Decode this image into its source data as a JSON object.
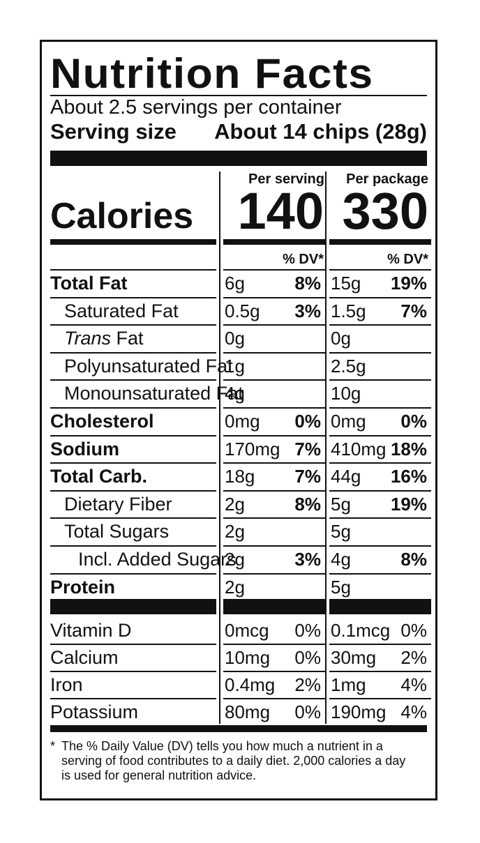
{
  "title": "Nutrition Facts",
  "servings_per_container": "About 2.5 servings per container",
  "serving_size_label": "Serving size",
  "serving_size_value": "About 14 chips (28g)",
  "col_per_serving": "Per serving",
  "col_per_package": "Per package",
  "calories_label": "Calories",
  "calories_serving": "140",
  "calories_package": "330",
  "dv_header": "% DV*",
  "nutrients": [
    {
      "label": "Total Fat",
      "bold": true,
      "indent": 0,
      "s_amt": "6g",
      "s_dv": "8%",
      "p_amt": "15g",
      "p_dv": "19%"
    },
    {
      "label": "Saturated Fat",
      "bold": false,
      "indent": 1,
      "s_amt": "0.5g",
      "s_dv": "3%",
      "p_amt": "1.5g",
      "p_dv": "7%"
    },
    {
      "label_italic": "Trans",
      "label": " Fat",
      "bold": false,
      "indent": 1,
      "s_amt": "0g",
      "s_dv": "",
      "p_amt": "0g",
      "p_dv": ""
    },
    {
      "label": "Polyunsaturated Fat",
      "bold": false,
      "indent": 1,
      "s_amt": "1g",
      "s_dv": "",
      "p_amt": "2.5g",
      "p_dv": ""
    },
    {
      "label": "Monounsaturated Fat",
      "bold": false,
      "indent": 1,
      "s_amt": "4g",
      "s_dv": "",
      "p_amt": "10g",
      "p_dv": ""
    },
    {
      "label": "Cholesterol",
      "bold": true,
      "indent": 0,
      "s_amt": "0mg",
      "s_dv": "0%",
      "p_amt": "0mg",
      "p_dv": "0%"
    },
    {
      "label": "Sodium",
      "bold": true,
      "indent": 0,
      "s_amt": "170mg",
      "s_dv": "7%",
      "p_amt": "410mg",
      "p_dv": "18%"
    },
    {
      "label": "Total Carb.",
      "bold": true,
      "indent": 0,
      "s_amt": "18g",
      "s_dv": "7%",
      "p_amt": "44g",
      "p_dv": "16%"
    },
    {
      "label": "Dietary Fiber",
      "bold": false,
      "indent": 1,
      "s_amt": "2g",
      "s_dv": "8%",
      "p_amt": "5g",
      "p_dv": "19%"
    },
    {
      "label": "Total Sugars",
      "bold": false,
      "indent": 1,
      "s_amt": "2g",
      "s_dv": "",
      "p_amt": "5g",
      "p_dv": ""
    },
    {
      "label": "Incl. Added Sugars",
      "bold": false,
      "indent": 2,
      "s_amt": "2g",
      "s_dv": "3%",
      "p_amt": "4g",
      "p_dv": "8%"
    },
    {
      "label": "Protein",
      "bold": true,
      "indent": 0,
      "s_amt": "2g",
      "s_dv": "",
      "p_amt": "5g",
      "p_dv": ""
    }
  ],
  "vitamins": [
    {
      "label": "Vitamin D",
      "s_amt": "0mcg",
      "s_dv": "0%",
      "p_amt": "0.1mcg",
      "p_dv": "0%"
    },
    {
      "label": "Calcium",
      "s_amt": "10mg",
      "s_dv": "0%",
      "p_amt": "30mg",
      "p_dv": "2%"
    },
    {
      "label": "Iron",
      "s_amt": "0.4mg",
      "s_dv": "2%",
      "p_amt": "1mg",
      "p_dv": "4%"
    },
    {
      "label": "Potassium",
      "s_amt": "80mg",
      "s_dv": "0%",
      "p_amt": "190mg",
      "p_dv": "4%"
    }
  ],
  "footnote_star": "*",
  "footnote": "The % Daily Value (DV) tells you how much a nutrient in a serving of food contributes to a daily diet. 2,000 calories a day is used for general nutrition advice."
}
